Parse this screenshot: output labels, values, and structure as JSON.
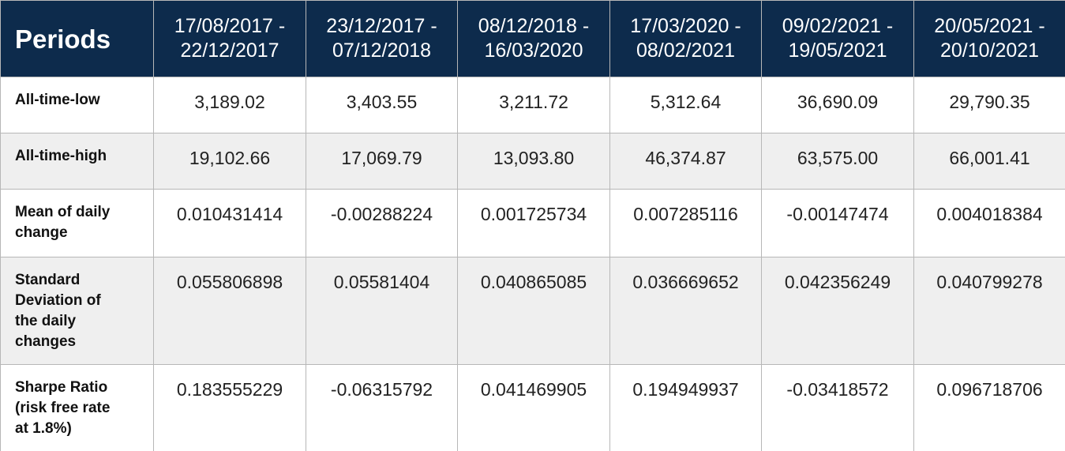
{
  "header": {
    "corner_label": "Periods",
    "periods": [
      {
        "start": "17/08/2017 -",
        "end": "22/12/2017"
      },
      {
        "start": "23/12/2017 -",
        "end": "07/12/2018"
      },
      {
        "start": "08/12/2018 -",
        "end": "16/03/2020"
      },
      {
        "start": "17/03/2020 -",
        "end": "08/02/2021"
      },
      {
        "start": "09/02/2021 -",
        "end": "19/05/2021"
      },
      {
        "start": "20/05/2021 -",
        "end": "20/10/2021"
      }
    ]
  },
  "rows": [
    {
      "label": "All-time-low",
      "values": [
        "3,189.02",
        "3,403.55",
        "3,211.72",
        "5,312.64",
        "36,690.09",
        "29,790.35"
      ]
    },
    {
      "label": "All-time-high",
      "values": [
        "19,102.66",
        "17,069.79",
        "13,093.80",
        "46,374.87",
        "63,575.00",
        "66,001.41"
      ]
    },
    {
      "label_lines": [
        "Mean of daily",
        "change"
      ],
      "values": [
        "0.010431414",
        "-0.00288224",
        "0.001725734",
        "0.007285116",
        "-0.00147474",
        "0.004018384"
      ]
    },
    {
      "label_lines": [
        "Standard",
        "Deviation of",
        "the daily",
        "changes"
      ],
      "values": [
        "0.055806898",
        "0.05581404",
        "0.040865085",
        "0.036669652",
        "0.042356249",
        "0.040799278"
      ]
    },
    {
      "label_lines": [
        "Sharpe Ratio",
        "(risk free rate",
        "at 1.8%)"
      ],
      "values": [
        "0.183555229",
        "-0.06315792",
        "0.041469905",
        "0.194949937",
        "-0.03418572",
        "0.096718706"
      ]
    }
  ]
}
